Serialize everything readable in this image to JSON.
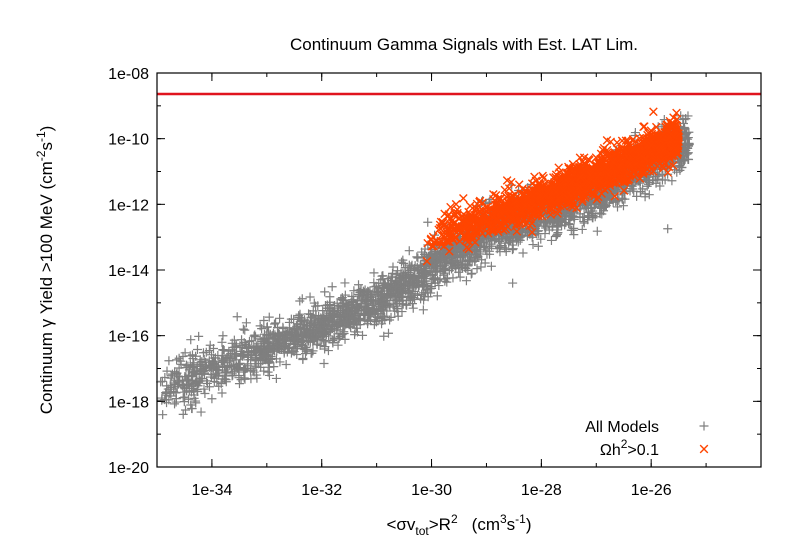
{
  "chart_data": {
    "type": "scatter",
    "title": "Continuum Gamma Signals with Est. LAT Lim.",
    "xlabel": {
      "open": "<σv",
      "sub": "tot",
      "mid": ">R",
      "sup": "2",
      "unit_open": "(cm",
      "unit_sup1": "3",
      "unit_mid": "s",
      "unit_sup2": "-1",
      "unit_close": ")"
    },
    "ylabel": {
      "main": "Continuum γ Yield >100 MeV (cm",
      "sup1": "-2",
      "mid": "s",
      "sup2": "-1",
      "close": ")"
    },
    "x_scale": "log",
    "y_scale": "log",
    "xlim": [
      1e-35,
      1e-24
    ],
    "ylim": [
      1e-20,
      1e-08
    ],
    "x_ticks": [
      {
        "value": 1e-34,
        "label": "1e-34"
      },
      {
        "value": 1e-32,
        "label": "1e-32"
      },
      {
        "value": 1e-30,
        "label": "1e-30"
      },
      {
        "value": 1e-28,
        "label": "1e-28"
      },
      {
        "value": 1e-26,
        "label": "1e-26"
      }
    ],
    "y_ticks": [
      {
        "value": 1e-20,
        "label": "1e-20"
      },
      {
        "value": 1e-18,
        "label": "1e-18"
      },
      {
        "value": 1e-16,
        "label": "1e-16"
      },
      {
        "value": 1e-14,
        "label": "1e-14"
      },
      {
        "value": 1e-12,
        "label": "1e-12"
      },
      {
        "value": 1e-10,
        "label": "1e-10"
      },
      {
        "value": 1e-08,
        "label": "1e-08"
      }
    ],
    "grid": false,
    "legend_position": "bottom-right",
    "reference_line": {
      "y": 2.3e-09,
      "color": "#e0141e"
    },
    "series": [
      {
        "name": "All Models",
        "marker": "plus",
        "color": "#7f7f7f",
        "band_x": [
          -34.95,
          -25.3
        ],
        "band_center": [
          [
            -35,
            -17.7
          ],
          [
            -33,
            -16.4
          ],
          [
            -31,
            -15.0
          ],
          [
            -29,
            -12.9
          ],
          [
            -27,
            -11.7
          ],
          [
            -25.5,
            -10.2
          ]
        ],
        "band_spread": 0.45,
        "count": 3200,
        "outliers": [
          {
            "x": 3e-35,
            "y": 1.3e-18
          },
          {
            "x": 2e-35,
            "y": 2e-18
          },
          {
            "x": 3e-35,
            "y": 4e-19
          },
          {
            "x": 1e-34,
            "y": 1.2e-18
          },
          {
            "x": 3e-29,
            "y": 4e-15
          },
          {
            "x": 2e-26,
            "y": 1.8e-13
          },
          {
            "x": 3e-31,
            "y": 2e-14
          },
          {
            "x": 1e-33,
            "y": 1e-16
          }
        ]
      },
      {
        "name": "Ωh²>0.1",
        "legend_prefix": "Ωh",
        "legend_sup": "2",
        "legend_suffix": ">0.1",
        "marker": "x",
        "color": "#ff4500",
        "band_x": [
          -30.1,
          -25.5
        ],
        "band_center": [
          [
            -30,
            -13.0
          ],
          [
            -29,
            -12.4
          ],
          [
            -28,
            -11.8
          ],
          [
            -27,
            -11.1
          ],
          [
            -26,
            -10.4
          ],
          [
            -25.5,
            -10.0
          ]
        ],
        "band_spread": 0.35,
        "count": 1700,
        "outliers": []
      }
    ]
  }
}
